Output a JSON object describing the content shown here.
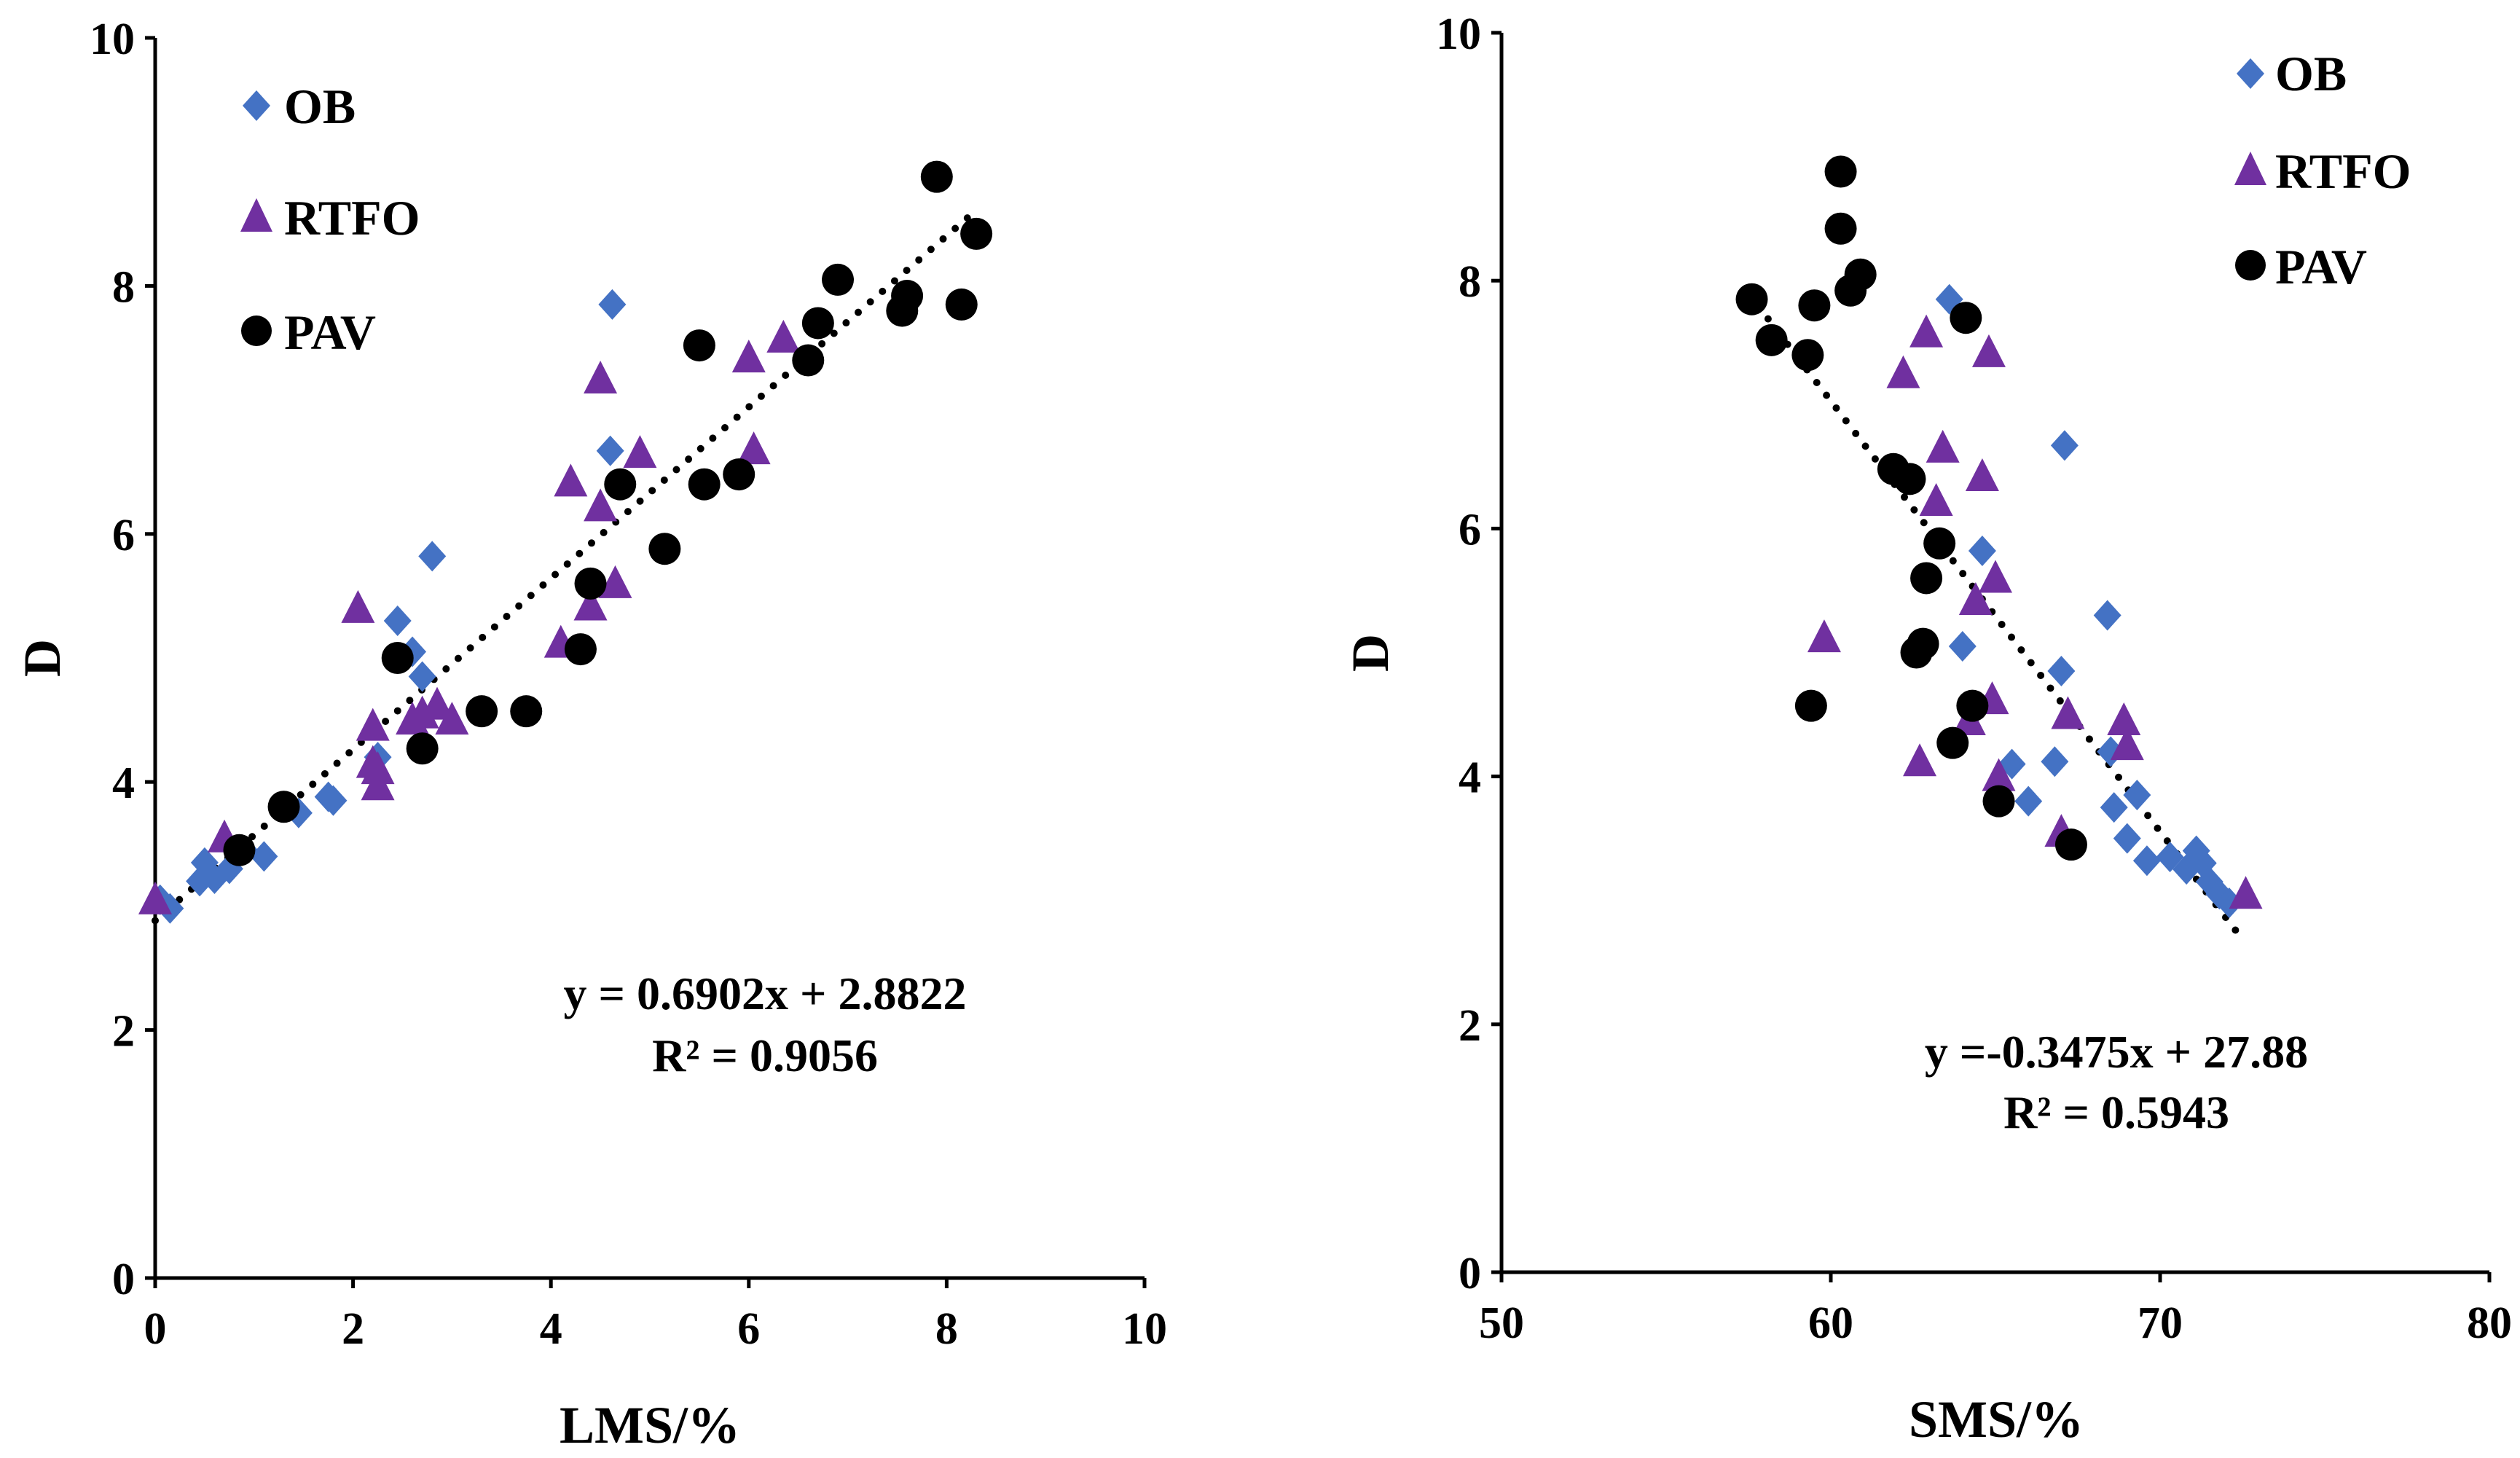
{
  "colors": {
    "OB": "#4472C4",
    "RTFO": "#7030A0",
    "PAV": "#000000"
  },
  "chart_data": [
    {
      "type": "scatter",
      "xlabel": "LMS/%",
      "ylabel": "D",
      "xlim": [
        0,
        10
      ],
      "ylim": [
        0,
        10
      ],
      "x_ticks": [
        "0",
        "2",
        "4",
        "6",
        "8",
        "10"
      ],
      "y_ticks": [
        "0",
        "2",
        "4",
        "6",
        "8",
        "10"
      ],
      "legend": [
        "OB",
        "RTFO",
        "PAV"
      ],
      "legend_position": "top-left",
      "trendline": {
        "slope": 0.6902,
        "intercept": 2.8822,
        "x_range": [
          0,
          8.3
        ]
      },
      "equation": "y = 0.6902x + 2.8822",
      "r2": "R² = 0.9056",
      "series": [
        {
          "name": "OB",
          "marker": "diamond",
          "points": [
            [
              0.05,
              3.05
            ],
            [
              0.15,
              2.98
            ],
            [
              0.45,
              3.2
            ],
            [
              0.5,
              3.35
            ],
            [
              0.6,
              3.22
            ],
            [
              0.75,
              3.3
            ],
            [
              0.9,
              3.45
            ],
            [
              1.1,
              3.4
            ],
            [
              1.45,
              3.75
            ],
            [
              1.75,
              3.88
            ],
            [
              1.8,
              3.85
            ],
            [
              2.25,
              4.2
            ],
            [
              2.45,
              5.3
            ],
            [
              2.6,
              5.05
            ],
            [
              2.7,
              4.85
            ],
            [
              2.8,
              5.82
            ],
            [
              4.6,
              6.67
            ],
            [
              4.62,
              7.85
            ]
          ]
        },
        {
          "name": "RTFO",
          "marker": "triangle",
          "points": [
            [
              0.0,
              3.05
            ],
            [
              0.7,
              3.55
            ],
            [
              2.05,
              5.4
            ],
            [
              2.2,
              4.45
            ],
            [
              2.2,
              4.15
            ],
            [
              2.25,
              3.97
            ],
            [
              2.25,
              4.1
            ],
            [
              2.6,
              4.5
            ],
            [
              2.7,
              4.55
            ],
            [
              2.85,
              4.62
            ],
            [
              3.0,
              4.5
            ],
            [
              4.1,
              5.12
            ],
            [
              4.2,
              6.42
            ],
            [
              4.4,
              5.42
            ],
            [
              4.5,
              6.22
            ],
            [
              4.5,
              7.25
            ],
            [
              4.65,
              5.6
            ],
            [
              4.9,
              6.65
            ],
            [
              6.0,
              7.42
            ],
            [
              6.05,
              6.68
            ],
            [
              6.35,
              7.58
            ]
          ]
        },
        {
          "name": "PAV",
          "marker": "circle",
          "points": [
            [
              0.85,
              3.45
            ],
            [
              1.3,
              3.8
            ],
            [
              2.45,
              5.0
            ],
            [
              2.7,
              4.27
            ],
            [
              3.3,
              4.57
            ],
            [
              3.75,
              4.57
            ],
            [
              4.3,
              5.07
            ],
            [
              4.4,
              5.6
            ],
            [
              4.7,
              6.4
            ],
            [
              5.15,
              5.88
            ],
            [
              5.5,
              7.52
            ],
            [
              5.55,
              6.4
            ],
            [
              5.9,
              6.48
            ],
            [
              6.6,
              7.4
            ],
            [
              6.7,
              7.7
            ],
            [
              6.9,
              8.05
            ],
            [
              7.55,
              7.8
            ],
            [
              7.6,
              7.92
            ],
            [
              7.9,
              8.88
            ],
            [
              8.15,
              7.85
            ],
            [
              8.3,
              8.42
            ]
          ]
        }
      ]
    },
    {
      "type": "scatter",
      "xlabel": "SMS/%",
      "ylabel": "D",
      "xlim": [
        50,
        80
      ],
      "ylim": [
        0,
        10
      ],
      "x_ticks": [
        "50",
        "60",
        "70",
        "80"
      ],
      "y_ticks": [
        "0",
        "2",
        "4",
        "6",
        "8",
        "10"
      ],
      "legend": [
        "OB",
        "RTFO",
        "PAV"
      ],
      "legend_position": "top-right",
      "trendline": {
        "slope": -0.3475,
        "intercept": 27.88,
        "x_range": [
          57.8,
          72.4
        ]
      },
      "equation": "y =-0.3475x + 27.88",
      "r2": "R² = 0.5943",
      "series": [
        {
          "name": "OB",
          "marker": "diamond",
          "points": [
            [
              63.6,
              7.85
            ],
            [
              64.0,
              5.05
            ],
            [
              64.6,
              5.82
            ],
            [
              65.5,
              4.1
            ],
            [
              66.0,
              3.8
            ],
            [
              66.8,
              4.12
            ],
            [
              67.0,
              4.85
            ],
            [
              67.1,
              6.67
            ],
            [
              68.4,
              5.3
            ],
            [
              68.5,
              4.2
            ],
            [
              68.6,
              3.75
            ],
            [
              69.0,
              3.5
            ],
            [
              69.3,
              3.85
            ],
            [
              69.6,
              3.32
            ],
            [
              70.3,
              3.35
            ],
            [
              70.8,
              3.25
            ],
            [
              71.1,
              3.4
            ],
            [
              71.3,
              3.3
            ],
            [
              71.5,
              3.15
            ],
            [
              71.8,
              3.05
            ],
            [
              72.1,
              2.98
            ]
          ]
        },
        {
          "name": "RTFO",
          "marker": "triangle",
          "points": [
            [
              59.8,
              5.12
            ],
            [
              62.2,
              7.25
            ],
            [
              62.7,
              4.12
            ],
            [
              62.9,
              7.58
            ],
            [
              63.2,
              6.22
            ],
            [
              63.4,
              6.65
            ],
            [
              64.2,
              4.45
            ],
            [
              64.4,
              5.42
            ],
            [
              64.6,
              6.42
            ],
            [
              64.8,
              7.42
            ],
            [
              64.9,
              4.62
            ],
            [
              65.0,
              5.6
            ],
            [
              65.1,
              4.0
            ],
            [
              67.0,
              3.55
            ],
            [
              67.2,
              4.5
            ],
            [
              68.9,
              4.45
            ],
            [
              69.0,
              4.25
            ],
            [
              72.6,
              3.05
            ]
          ]
        },
        {
          "name": "PAV",
          "marker": "circle",
          "points": [
            [
              57.6,
              7.85
            ],
            [
              58.2,
              7.52
            ],
            [
              59.3,
              7.4
            ],
            [
              59.4,
              4.57
            ],
            [
              59.5,
              7.8
            ],
            [
              60.3,
              8.88
            ],
            [
              60.3,
              8.42
            ],
            [
              60.6,
              7.92
            ],
            [
              60.9,
              8.05
            ],
            [
              61.9,
              6.48
            ],
            [
              62.4,
              6.4
            ],
            [
              62.6,
              5.0
            ],
            [
              62.8,
              5.07
            ],
            [
              62.9,
              5.6
            ],
            [
              63.3,
              5.88
            ],
            [
              63.7,
              4.27
            ],
            [
              64.1,
              7.7
            ],
            [
              64.3,
              4.57
            ],
            [
              65.1,
              3.8
            ],
            [
              67.3,
              3.45
            ]
          ]
        }
      ]
    }
  ]
}
